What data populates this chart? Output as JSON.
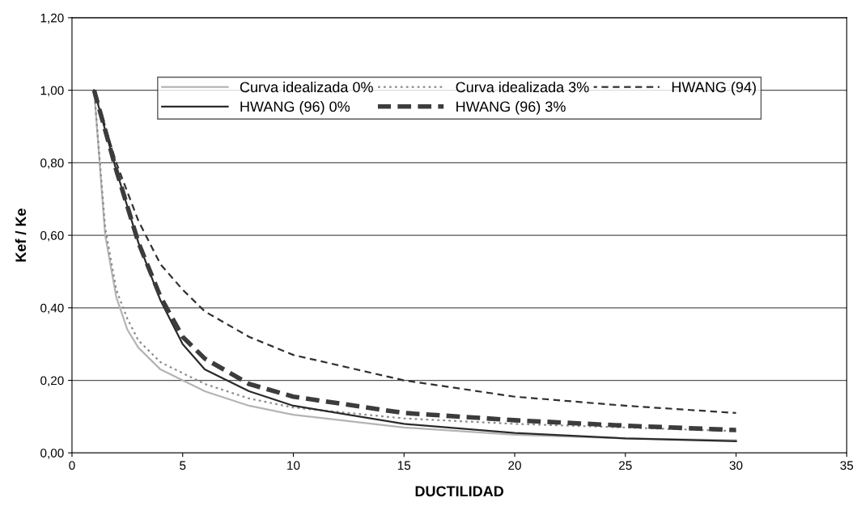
{
  "chart_data": {
    "type": "line",
    "xlabel": "DUCTILIDAD",
    "ylabel": "Kef / Ke",
    "x": [
      1,
      1.5,
      2,
      2.5,
      3,
      4,
      5,
      6,
      8,
      10,
      15,
      20,
      25,
      30
    ],
    "series": [
      {
        "name": "Curva idealizada 0%",
        "color": "#b4b4b4",
        "line_style": "solid",
        "values": [
          1.0,
          0.6,
          0.43,
          0.34,
          0.29,
          0.23,
          0.2,
          0.17,
          0.13,
          0.105,
          0.07,
          0.05,
          0.04,
          0.035
        ]
      },
      {
        "name": "Curva idealizada 3%",
        "color": "#8c8c8c",
        "line_style": "dotted",
        "values": [
          1.0,
          0.62,
          0.45,
          0.37,
          0.31,
          0.25,
          0.22,
          0.19,
          0.15,
          0.125,
          0.095,
          0.08,
          0.07,
          0.06
        ]
      },
      {
        "name": "HWANG (94)",
        "color": "#303030",
        "line_style": "dashed",
        "values": [
          1.0,
          0.9,
          0.8,
          0.72,
          0.64,
          0.52,
          0.45,
          0.39,
          0.32,
          0.27,
          0.2,
          0.155,
          0.13,
          0.11
        ]
      },
      {
        "name": "HWANG (96) 0%",
        "color": "#2a2a2a",
        "line_style": "solid",
        "values": [
          1.0,
          0.89,
          0.78,
          0.68,
          0.58,
          0.42,
          0.3,
          0.23,
          0.17,
          0.13,
          0.08,
          0.055,
          0.04,
          0.032
        ]
      },
      {
        "name": "HWANG (96) 3%",
        "color": "#3c3c3c",
        "line_style": "dashed",
        "values": [
          1.0,
          0.89,
          0.78,
          0.68,
          0.58,
          0.43,
          0.32,
          0.26,
          0.19,
          0.155,
          0.11,
          0.09,
          0.075,
          0.063
        ]
      }
    ],
    "xlim": [
      0,
      35
    ],
    "xticks": [
      0,
      5,
      10,
      15,
      20,
      25,
      30,
      35
    ],
    "ylim": [
      0,
      1.2
    ],
    "yticks": [
      {
        "value": 0,
        "label": "0,00"
      },
      {
        "value": 0.2,
        "label": "0,20"
      },
      {
        "value": 0.4,
        "label": "0,40"
      },
      {
        "value": 0.6,
        "label": "0,60"
      },
      {
        "value": 0.8,
        "label": "0,80"
      },
      {
        "value": 1.0,
        "label": "1,00"
      },
      {
        "value": 1.2,
        "label": "1,20"
      }
    ],
    "grid": "y",
    "legend": "top",
    "marker": "none"
  }
}
